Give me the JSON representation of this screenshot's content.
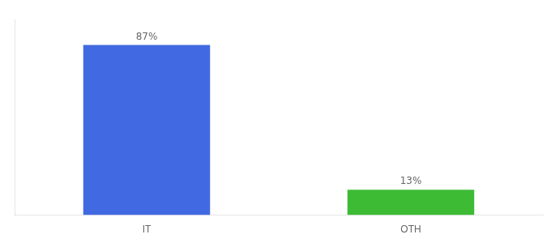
{
  "chart_data": {
    "type": "bar",
    "categories": [
      "IT",
      "OTH"
    ],
    "values": [
      87,
      13
    ],
    "value_labels": [
      "87%",
      "13%"
    ],
    "colors": [
      "#4169e1",
      "#3dbb35"
    ],
    "ylim": [
      0,
      100
    ],
    "data_labels": true,
    "tick_labels": "x",
    "grid": false
  }
}
